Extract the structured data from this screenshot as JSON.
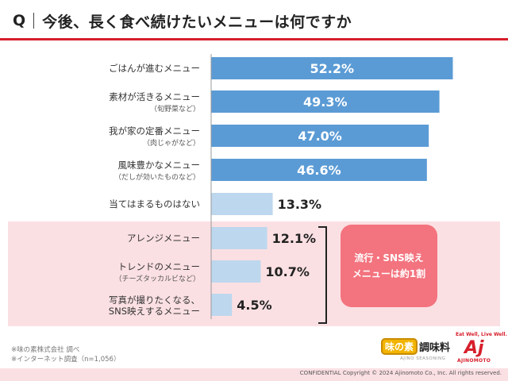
{
  "header": {
    "q_label": "Q",
    "title": "今後、長く食べ続けたいメニューは何ですか"
  },
  "chart_data": {
    "type": "bar",
    "orientation": "horizontal",
    "categories": [
      {
        "label": "ごはんが進むメニュー",
        "sub": ""
      },
      {
        "label": "素材が活きるメニュー",
        "sub": "（旬野菜など）"
      },
      {
        "label": "我が家の定番メニュー",
        "sub": "（肉じゃがなど）"
      },
      {
        "label": "風味豊かなメニュー",
        "sub": "（だしが効いたものなど）"
      },
      {
        "label": "当てはまるものはない",
        "sub": ""
      },
      {
        "label": "アレンジメニュー",
        "sub": ""
      },
      {
        "label": "トレンドのメニュー",
        "sub": "（チーズタッカルビなど）"
      },
      {
        "label": "写真が撮りたくなる、",
        "sub": "SNS映えするメニュー"
      }
    ],
    "values": [
      52.2,
      49.3,
      47.0,
      46.6,
      13.3,
      12.1,
      10.7,
      4.5
    ],
    "value_labels": [
      "52.2%",
      "49.3%",
      "47.0%",
      "46.6%",
      "13.3%",
      "12.1%",
      "10.7%",
      "4.5%"
    ],
    "xlim": [
      0,
      60
    ],
    "grid": false,
    "colors": {
      "strong": "#5b9bd5",
      "light": "#bdd7ee",
      "value_inside": "#ffffff",
      "value_outside": "#222222"
    },
    "bar_style": [
      "strong",
      "strong",
      "strong",
      "strong",
      "light",
      "light",
      "light",
      "light"
    ]
  },
  "callout": {
    "line1": "流行・SNS映え",
    "line2": "メニューは約1割"
  },
  "notes": {
    "line1": "※味の素株式会社 調べ",
    "line2": "※インターネット調査（n=1,056）"
  },
  "logos": {
    "brand1_badge": "味の素",
    "brand1_text": "調味料",
    "brand1_sub": "AJINO SEASONING",
    "brand2_tagline": "Eat Well, Live Well.",
    "brand2_mark": "Aj",
    "brand2_name": "AJINOMOTO"
  },
  "footer": {
    "text": "CONFIDENTIAL   Copyright © 2024 Ajinomoto Co., Inc. All rights reserved."
  },
  "colors": {
    "accent_red": "#d61f2b",
    "pink_band": "#fbe0e3",
    "callout": "#f3737e"
  }
}
